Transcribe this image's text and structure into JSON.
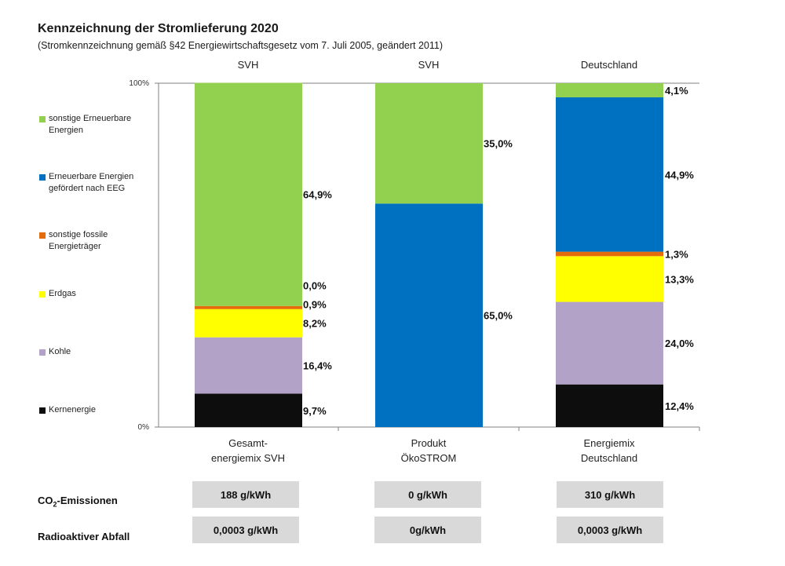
{
  "header": {
    "title": "Kennzeichnung der Stromlieferung 2020",
    "subtitle": "(Stromkennzeichnung gemäß §42 Energiewirtschaftsgesetz vom 7. Juli 2005, geändert 2011)"
  },
  "chart_data": {
    "type": "bar",
    "stacked": true,
    "ylim": [
      0,
      100
    ],
    "yticks": [
      "0%",
      "100%"
    ],
    "column_headers": [
      "SVH",
      "SVH",
      "Deutschland"
    ],
    "categories": [
      [
        "Gesamt-",
        "energiemix SVH"
      ],
      [
        "Produkt",
        "ÖkoSTROM"
      ],
      [
        "Energiemix",
        "Deutschland"
      ]
    ],
    "series": [
      {
        "name": "Kernenergie",
        "color": "#0d0d0d",
        "values": [
          9.7,
          0,
          12.4
        ]
      },
      {
        "name": "Kohle",
        "color": "#b3a2c7",
        "values": [
          16.4,
          0,
          24.0
        ]
      },
      {
        "name": "Erdgas",
        "color": "#ffff00",
        "values": [
          8.2,
          0,
          13.3
        ]
      },
      {
        "name": "sonstige fossile Energieträger",
        "color": "#e46c0a",
        "values": [
          0.9,
          0,
          1.3
        ]
      },
      {
        "name": "Erneuerbare Energien gefördert nach EEG",
        "color": "#0070c0",
        "values": [
          0.0,
          65.0,
          44.9
        ]
      },
      {
        "name": "sonstige Erneuerbare Energien",
        "color": "#92d050",
        "values": [
          64.9,
          35.0,
          4.1
        ]
      }
    ],
    "data_labels": [
      [
        "9,7%",
        "16,4%",
        "8,2%",
        "0,9%",
        "0,0%",
        "64,9%"
      ],
      [
        "65,0%",
        "35,0%"
      ],
      [
        "12,4%",
        "24,0%",
        "13,3%",
        "1,3%",
        "44,9%",
        "4,1%"
      ]
    ],
    "legend": [
      {
        "lines": [
          "sonstige Erneuerbare",
          "Energien"
        ],
        "color": "#92d050"
      },
      {
        "lines": [
          "Erneuerbare Energien",
          "gefördert nach EEG"
        ],
        "color": "#0070c0"
      },
      {
        "lines": [
          "sonstige fossile",
          "Energieträger"
        ],
        "color": "#e46c0a"
      },
      {
        "lines": [
          "Erdgas"
        ],
        "color": "#ffff00"
      },
      {
        "lines": [
          "Kohle"
        ],
        "color": "#b3a2c7"
      },
      {
        "lines": [
          "Kernenergie"
        ],
        "color": "#0d0d0d"
      }
    ]
  },
  "table": {
    "co2_label_prefix": "CO",
    "co2_label_sub": "2",
    "co2_label_suffix": "-Emissionen",
    "waste_label": "Radioaktiver Abfall",
    "co2_values": [
      "188 g/kWh",
      "0 g/kWh",
      "310 g/kWh"
    ],
    "waste_values": [
      "0,0003 g/kWh",
      "0g/kWh",
      "0,0003 g/kWh"
    ]
  }
}
